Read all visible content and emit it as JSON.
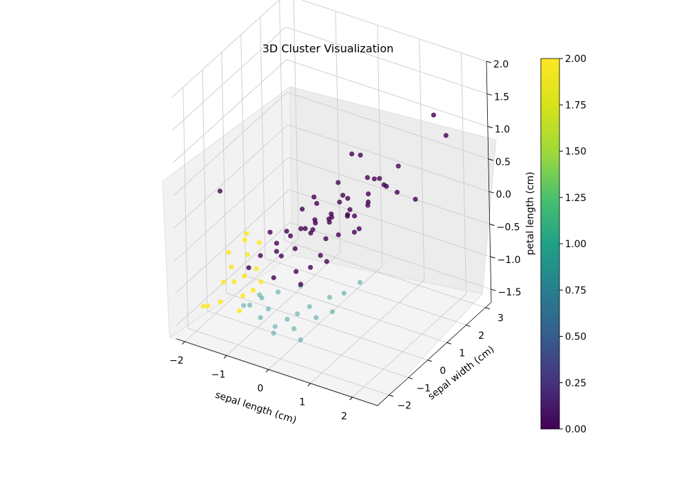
{
  "chart_data": {
    "type": "scatter",
    "title": "3D Cluster Visualization",
    "xlabel": "sepal length (cm)",
    "ylabel": "sepal width (cm)",
    "zlabel": "petal length (cm)",
    "x_ticks": [
      "−2",
      "−1",
      "0",
      "1",
      "2"
    ],
    "y_ticks": [
      "−2",
      "−1",
      "0",
      "1",
      "2",
      "3"
    ],
    "z_ticks": [
      "−1.5",
      "−1.0",
      "−0.5",
      "0.0",
      "0.5",
      "1.0",
      "1.5",
      "2.0"
    ],
    "xlim": [
      -2.2,
      2.6
    ],
    "ylim": [
      -2.6,
      3.3
    ],
    "zlim": [
      -1.7,
      2.0
    ],
    "grid": true,
    "colorbar": {
      "colormap": "viridis",
      "range": [
        0.0,
        2.0
      ],
      "ticks": [
        "0.00",
        "0.25",
        "0.50",
        "0.75",
        "1.00",
        "1.25",
        "1.50",
        "1.75",
        "2.00"
      ]
    },
    "colors": [
      "#440154",
      "#21918c",
      "#fde725"
    ],
    "series": [
      {
        "value": 0,
        "points": [
          [
            1.3,
            -0.1,
            0.6
          ],
          [
            1.6,
            0.2,
            0.7
          ],
          [
            1.2,
            0.1,
            0.4
          ],
          [
            0.9,
            -0.3,
            0.5
          ],
          [
            1.5,
            -0.2,
            0.9
          ],
          [
            1.8,
            0.4,
            1.0
          ],
          [
            2.1,
            0.6,
            0.5
          ],
          [
            1.9,
            0.1,
            0.7
          ],
          [
            2.2,
            1.4,
            1.6
          ],
          [
            2.3,
            1.8,
            1.2
          ],
          [
            0.6,
            -0.5,
            0.2
          ],
          [
            0.7,
            0.1,
            0.1
          ],
          [
            0.4,
            -0.2,
            0.0
          ],
          [
            0.5,
            0.3,
            0.3
          ],
          [
            1.0,
            0.5,
            0.2
          ],
          [
            1.1,
            0.3,
            0.7
          ],
          [
            0.3,
            -0.7,
            0.1
          ],
          [
            0.2,
            -0.4,
            0.3
          ],
          [
            0.1,
            -0.8,
            0.0
          ],
          [
            -0.1,
            -0.6,
            -0.1
          ],
          [
            0.0,
            -0.2,
            -0.2
          ],
          [
            0.2,
            0.2,
            -0.1
          ],
          [
            0.5,
            -0.9,
            -0.3
          ],
          [
            0.8,
            -0.6,
            0.0
          ],
          [
            0.9,
            -0.2,
            0.3
          ],
          [
            -0.3,
            -0.9,
            -0.1
          ],
          [
            -0.4,
            -0.5,
            -0.3
          ],
          [
            -0.2,
            -0.3,
            0.1
          ],
          [
            -0.5,
            -1.0,
            -0.3
          ],
          [
            -0.6,
            -0.8,
            -0.5
          ],
          [
            -0.3,
            -1.2,
            -0.4
          ],
          [
            0.0,
            -1.1,
            -0.6
          ],
          [
            0.3,
            -1.0,
            -0.5
          ],
          [
            0.6,
            -0.8,
            -0.4
          ],
          [
            -0.8,
            -1.2,
            -0.5
          ],
          [
            -0.7,
            -0.9,
            -0.2
          ],
          [
            -0.1,
            0.1,
            0.2
          ],
          [
            0.3,
            0.5,
            0.4
          ],
          [
            0.4,
            -0.1,
            0.1
          ],
          [
            0.1,
            -0.3,
            0.0
          ],
          [
            -0.2,
            -0.7,
            -0.4
          ],
          [
            0.6,
            0.3,
            0.0
          ],
          [
            0.9,
            0.0,
            -0.1
          ],
          [
            1.1,
            -0.4,
            0.3
          ],
          [
            1.3,
            -0.6,
            0.2
          ],
          [
            -1.6,
            -1.5,
            0.4
          ],
          [
            -0.9,
            -1.6,
            -0.6
          ],
          [
            -0.4,
            -1.4,
            -0.7
          ],
          [
            0.2,
            -1.3,
            -0.7
          ],
          [
            0.7,
            -0.3,
            0.4
          ],
          [
            1.4,
            0.5,
            0.6
          ],
          [
            1.2,
            0.7,
            0.6
          ],
          [
            0.8,
            0.6,
            0.9
          ],
          [
            0.5,
            0.8,
            0.8
          ],
          [
            -0.1,
            -0.1,
            -0.3
          ],
          [
            0.4,
            -0.4,
            -0.2
          ]
        ]
      },
      {
        "value": 1,
        "points": [
          [
            -0.8,
            -1.8,
            -1.1
          ],
          [
            -0.6,
            -1.6,
            -1.0
          ],
          [
            -0.5,
            -1.9,
            -1.2
          ],
          [
            -0.4,
            -1.7,
            -1.1
          ],
          [
            -0.7,
            -1.5,
            -1.0
          ],
          [
            -0.3,
            -1.4,
            -0.9
          ],
          [
            -0.2,
            -1.8,
            -1.3
          ],
          [
            0.0,
            -1.6,
            -1.2
          ],
          [
            0.2,
            -1.5,
            -1.1
          ],
          [
            0.4,
            -1.3,
            -1.0
          ],
          [
            0.1,
            -1.1,
            -0.8
          ],
          [
            0.6,
            -1.4,
            -1.1
          ],
          [
            0.9,
            -1.2,
            -1.0
          ],
          [
            1.0,
            -0.8,
            -0.8
          ],
          [
            0.7,
            -0.9,
            -0.9
          ],
          [
            1.2,
            -0.4,
            -0.7
          ],
          [
            0.5,
            -2.0,
            -1.3
          ],
          [
            -0.9,
            -1.9,
            -1.1
          ],
          [
            -0.1,
            -2.1,
            -1.3
          ],
          [
            0.3,
            -1.9,
            -1.2
          ]
        ]
      },
      {
        "value": 2,
        "points": [
          [
            -1.8,
            -0.7,
            -0.8
          ],
          [
            -1.6,
            -1.0,
            -0.9
          ],
          [
            -1.4,
            -1.3,
            -1.0
          ],
          [
            -1.5,
            -0.5,
            -0.6
          ],
          [
            -1.2,
            -1.2,
            -0.9
          ],
          [
            -1.1,
            -1.5,
            -1.1
          ],
          [
            -1.0,
            -1.0,
            -0.8
          ],
          [
            -1.3,
            -0.8,
            -0.7
          ],
          [
            -0.9,
            -1.4,
            -1.0
          ],
          [
            -1.7,
            -1.2,
            -1.1
          ],
          [
            -1.9,
            -1.6,
            -1.4
          ],
          [
            -1.0,
            -1.9,
            -1.2
          ],
          [
            -1.5,
            -1.8,
            -1.2
          ],
          [
            -1.2,
            -0.4,
            -0.6
          ],
          [
            -2.1,
            -1.4,
            -1.5
          ],
          [
            -0.8,
            -1.2,
            -0.9
          ],
          [
            -1.6,
            -0.2,
            -0.6
          ]
        ]
      }
    ]
  }
}
